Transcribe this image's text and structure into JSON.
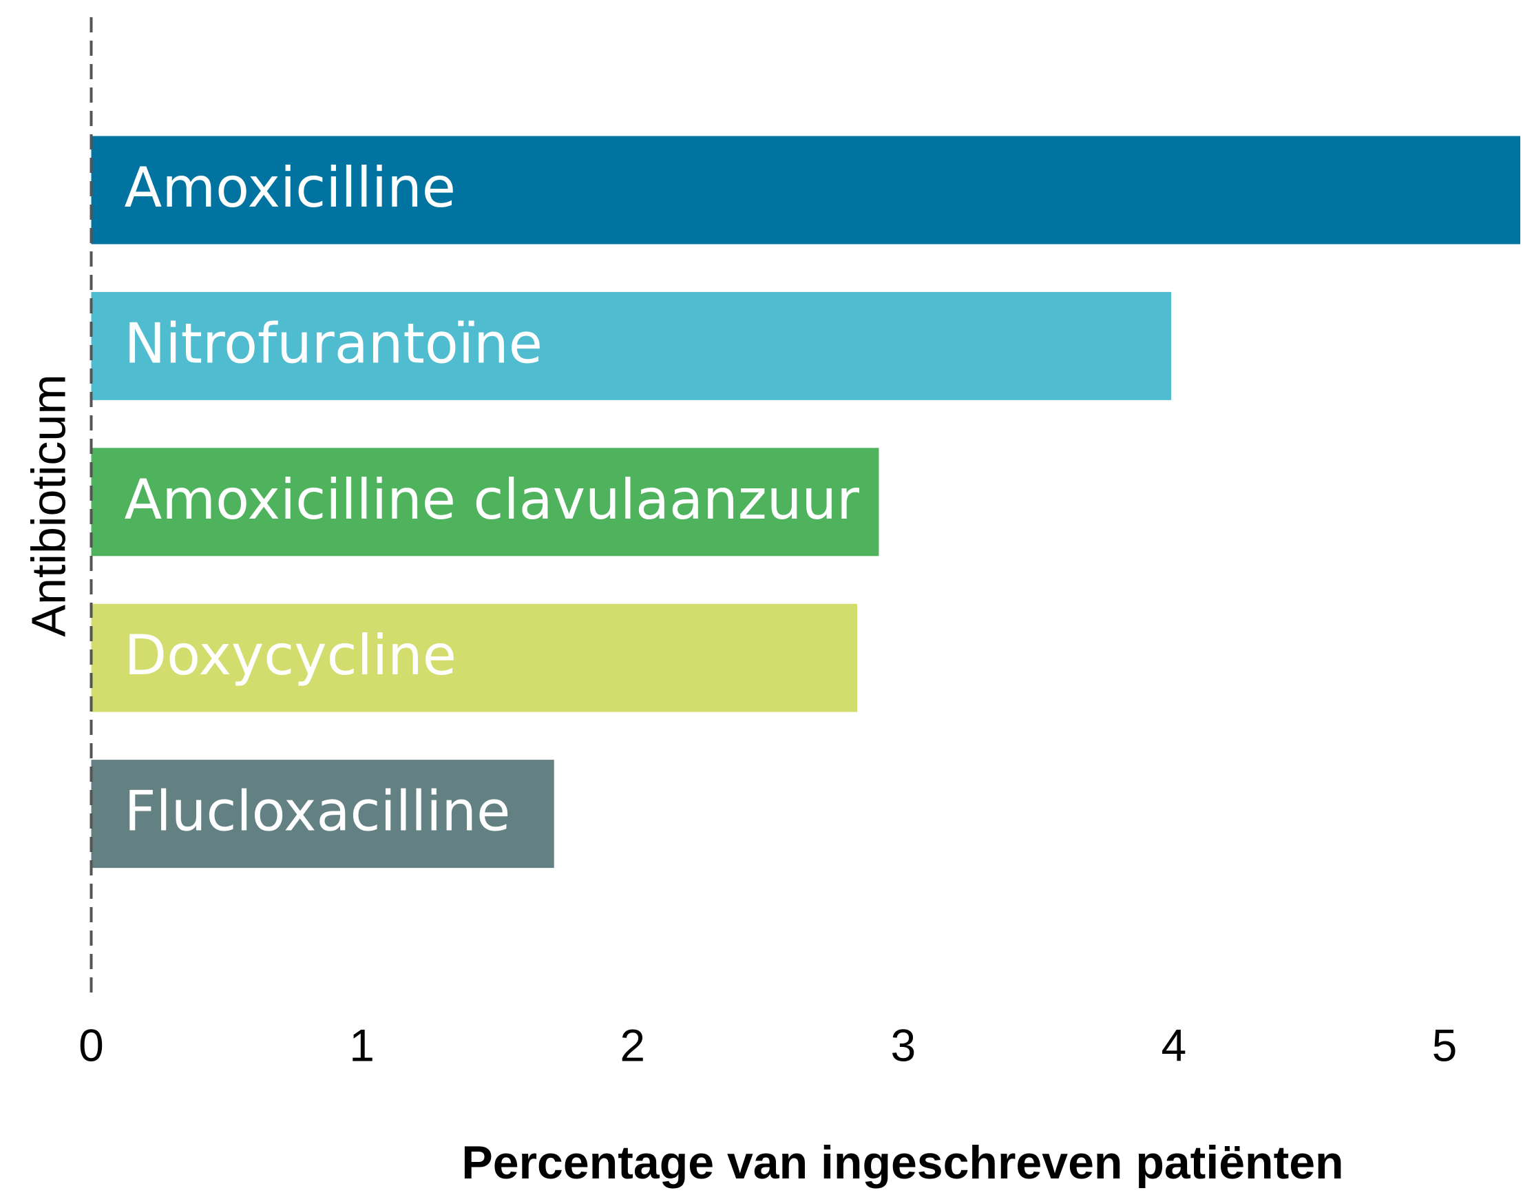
{
  "chart_data": {
    "type": "barh",
    "xlabel": "Percentage van ingeschreven patiënten",
    "ylabel": "Antibioticum",
    "categories": [
      "Amoxicilline",
      "Nitrofurantoïne",
      "Amoxicilline clavulaanzuur",
      "Doxycycline",
      "Flucloxacilline"
    ],
    "values": [
      5.28,
      3.99,
      2.91,
      2.83,
      1.71
    ],
    "colors": [
      "#0073a0",
      "#4fbdcf",
      "#4fb25c",
      "#d3dd6e",
      "#638083"
    ],
    "xlim": [
      0,
      5.29
    ],
    "xticks": [
      0,
      1,
      2,
      3,
      4,
      5
    ],
    "grid": false
  }
}
